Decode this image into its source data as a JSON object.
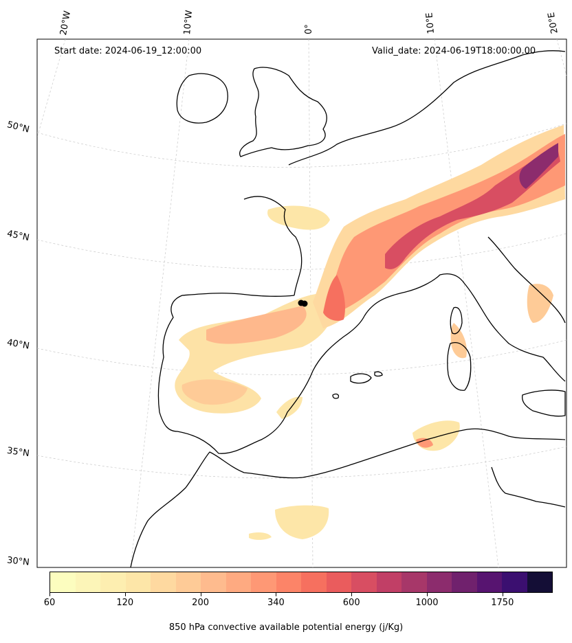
{
  "map": {
    "start_date": "Start date: 2024-06-19_12:00:00",
    "valid_date": "Valid_date: 2024-06-19T18:00:00.00",
    "lon_labels": [
      "20°W",
      "10°W",
      "0°",
      "10°E",
      "20°E"
    ],
    "lat_labels": [
      "50°N",
      "45°N",
      "40°N",
      "35°N",
      "30°N"
    ],
    "coastline_color": "#000000",
    "gridline_color": "#c8c8c8"
  },
  "colorbar": {
    "label": "850 hPa convective available potential energy (j/Kg)",
    "tick_labels": [
      "60",
      "120",
      "200",
      "340",
      "600",
      "1000",
      "1750"
    ],
    "colors": [
      "#fcfdbf",
      "#fcf5b8",
      "#fdeeb0",
      "#fde6a8",
      "#fed9a0",
      "#fecb97",
      "#febb8e",
      "#feaa81",
      "#fe9875",
      "#fc8468",
      "#f6705f",
      "#ea5c5d",
      "#d84e62",
      "#c13f66",
      "#a73769",
      "#8c2c6d",
      "#70216d",
      "#571470",
      "#3b0f70",
      "#140e36"
    ]
  }
}
